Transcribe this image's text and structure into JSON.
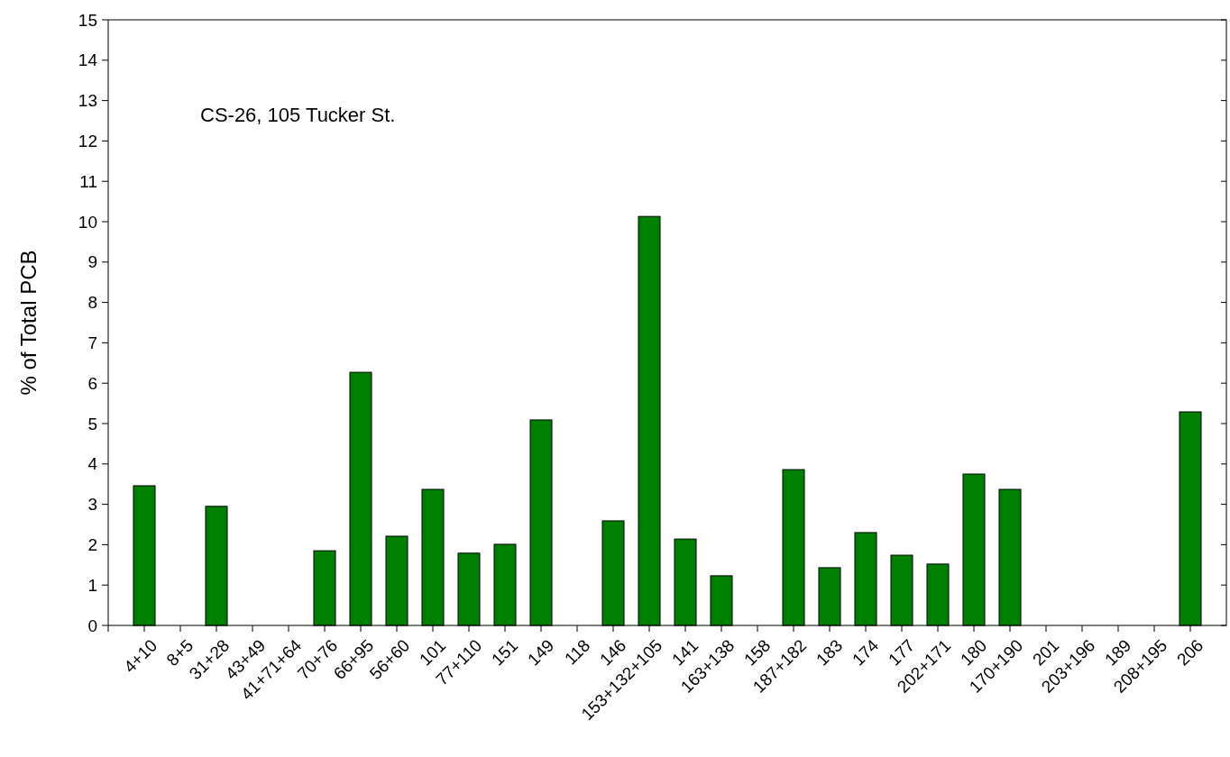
{
  "chart_data": {
    "type": "bar",
    "ylabel": "% of Total PCB",
    "annotations": [
      "CS-26, 105 Tucker St."
    ],
    "categories": [
      "4+10",
      "8+5",
      "31+28",
      "43+49",
      "41+71+64",
      "70+76",
      "66+95",
      "56+60",
      "101",
      "77+110",
      "151",
      "149",
      "118",
      "146",
      "153+132+105",
      "141",
      "163+138",
      "158",
      "187+182",
      "183",
      "174",
      "177",
      "202+171",
      "180",
      "170+190",
      "201",
      "203+196",
      "189",
      "208+195",
      "206"
    ],
    "values": [
      3.46,
      0,
      2.95,
      0,
      0,
      1.85,
      6.27,
      2.21,
      3.37,
      1.79,
      2.01,
      5.09,
      0,
      2.59,
      10.13,
      2.14,
      1.23,
      0,
      3.86,
      1.43,
      2.3,
      1.74,
      1.52,
      3.75,
      3.37,
      0,
      0,
      0,
      0,
      5.29
    ],
    "color": "#008000",
    "ylim": [
      0,
      15
    ],
    "yticks": [
      0,
      1,
      2,
      3,
      4,
      5,
      6,
      7,
      8,
      9,
      10,
      11,
      12,
      13,
      14,
      15
    ]
  }
}
